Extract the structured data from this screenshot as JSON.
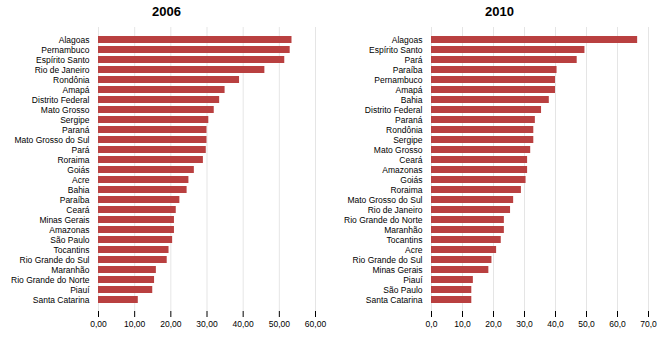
{
  "chart_data": [
    {
      "type": "bar",
      "orientation": "horizontal",
      "title": "2006",
      "categories": [
        "Alagoas",
        "Pernambuco",
        "Espírito Santo",
        "Rio de Janeiro",
        "Rondônia",
        "Amapá",
        "Distrito Federal",
        "Mato Grosso",
        "Sergipe",
        "Paraná",
        "Mato Grosso do Sul",
        "Pará",
        "Roraima",
        "Goiás",
        "Acre",
        "Bahia",
        "Paraíba",
        "Ceará",
        "Minas Gerais",
        "Amazonas",
        "São Paulo",
        "Tocantins",
        "Rio Grande do Sul",
        "Maranhão",
        "Rio Grande do Norte",
        "Piauí",
        "Santa Catarina"
      ],
      "values": [
        53.5,
        53.0,
        51.5,
        46.0,
        39.0,
        35.0,
        33.5,
        32.0,
        30.5,
        30.0,
        30.0,
        29.8,
        29.0,
        26.5,
        25.0,
        24.5,
        22.5,
        21.5,
        21.0,
        21.0,
        20.5,
        19.5,
        19.0,
        16.0,
        15.5,
        15.0,
        11.0
      ],
      "color": "#b94040",
      "xlim": [
        0,
        60
      ],
      "xticks": [
        {
          "value": 0,
          "label": "0,00"
        },
        {
          "value": 10,
          "label": "10,00"
        },
        {
          "value": 20,
          "label": "20,00"
        },
        {
          "value": 30,
          "label": "30,00"
        },
        {
          "value": 40,
          "label": "40,00"
        },
        {
          "value": 50,
          "label": "50,00"
        },
        {
          "value": 60,
          "label": "60,00"
        }
      ],
      "grid": true
    },
    {
      "type": "bar",
      "orientation": "horizontal",
      "title": "2010",
      "categories": [
        "Alagoas",
        "Espírito Santo",
        "Pará",
        "Paraíba",
        "Pernambuco",
        "Amapá",
        "Bahia",
        "Distrito Federal",
        "Paraná",
        "Rondônia",
        "Sergipe",
        "Mato Grosso",
        "Ceará",
        "Amazonas",
        "Goiás",
        "Roraima",
        "Mato Grosso do Sul",
        "Rio de Janeiro",
        "Rio Grande do Norte",
        "Maranhão",
        "Tocantins",
        "Acre",
        "Rio Grande do Sul",
        "Minas Gerais",
        "Piauí",
        "São Paulo",
        "Santa Catarina"
      ],
      "values": [
        66.5,
        49.5,
        47.0,
        40.5,
        40.0,
        40.0,
        38.0,
        35.5,
        33.5,
        33.0,
        33.0,
        32.0,
        31.0,
        31.0,
        30.5,
        29.0,
        26.5,
        25.5,
        23.5,
        23.5,
        22.5,
        21.0,
        19.5,
        18.5,
        13.5,
        13.0,
        13.0
      ],
      "color": "#b94040",
      "xlim": [
        0,
        70
      ],
      "xticks": [
        {
          "value": 0,
          "label": "0,0"
        },
        {
          "value": 10,
          "label": "10,0"
        },
        {
          "value": 20,
          "label": "20,0"
        },
        {
          "value": 30,
          "label": "30,0"
        },
        {
          "value": 40,
          "label": "40,0"
        },
        {
          "value": 50,
          "label": "50,0"
        },
        {
          "value": 60,
          "label": "60,0"
        },
        {
          "value": 70,
          "label": "70,0"
        }
      ],
      "grid": true
    }
  ]
}
